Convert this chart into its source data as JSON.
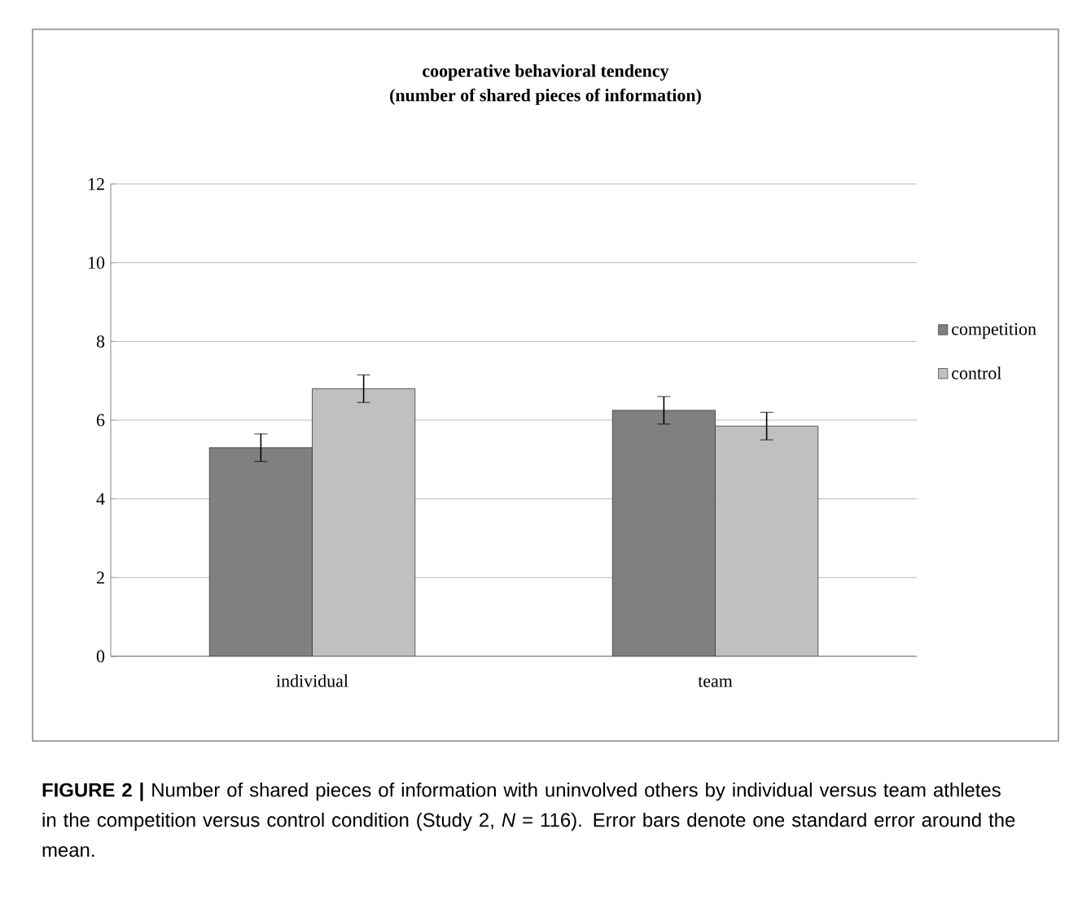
{
  "chart_data": {
    "type": "bar",
    "title": "cooperative behavioral tendency",
    "subtitle": "(number of shared pieces of information)",
    "categories": [
      "individual",
      "team"
    ],
    "series": [
      {
        "name": "competition",
        "color": "#808080",
        "values": [
          5.3,
          6.25
        ],
        "errors": [
          0.35,
          0.35
        ]
      },
      {
        "name": "control",
        "color": "#c0c0c0",
        "values": [
          6.8,
          5.85
        ],
        "errors": [
          0.35,
          0.35
        ]
      }
    ],
    "ylim": [
      0,
      12
    ],
    "yticks": [
      0,
      2,
      4,
      6,
      8,
      10,
      12
    ],
    "grid": "y",
    "legend": "right",
    "annotations": [
      "**FIGURE 2 |** Number of shared pieces of information with uninvolved others by individual versus team athletes in the competition versus control condition (Study 2, *N* = 116). Error bars denote one standard error around the mean."
    ]
  }
}
